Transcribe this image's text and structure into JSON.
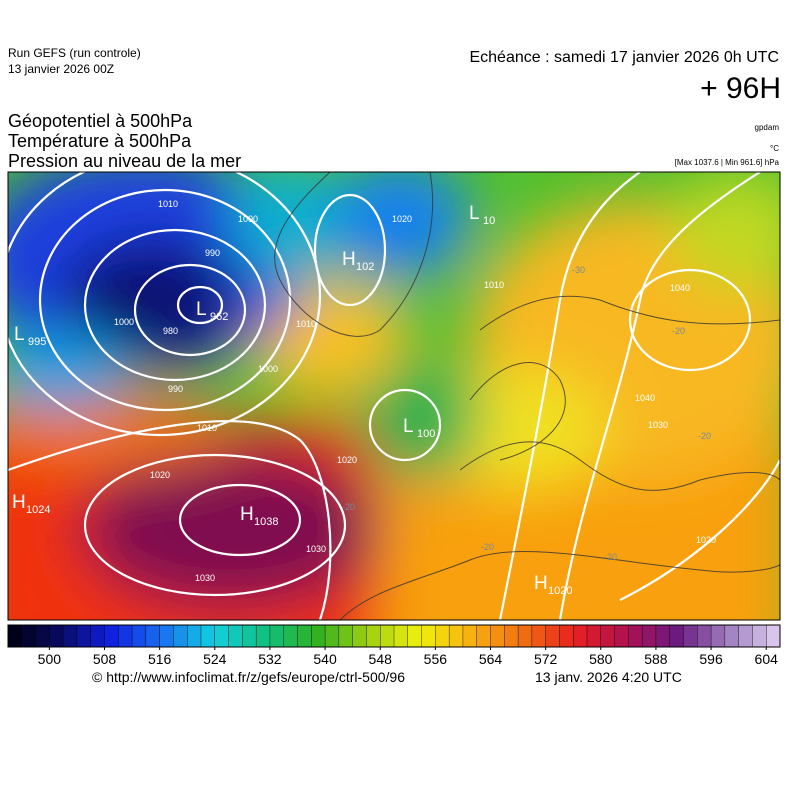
{
  "header": {
    "run": "Run GEFS (run controle)",
    "run_date": "13 janvier 2026 00Z",
    "valid": "Echéance : samedi 17 janvier 2026 0h UTC",
    "lead": "+ 96H",
    "fields": [
      "Géopotentiel à 500hPa",
      "Température à 500hPa",
      "Pression au niveau de la mer"
    ],
    "units": [
      "gpdam",
      "°C",
      "[Max 1037.6 | Min 961.6] hPa"
    ]
  },
  "map": {
    "pressure_centers": [
      {
        "type": "L",
        "value": "995"
      },
      {
        "type": "L",
        "value": "962"
      },
      {
        "type": "H",
        "value": "1024"
      },
      {
        "type": "H",
        "value": "1038"
      },
      {
        "type": "H",
        "value": "1020"
      },
      {
        "type": "L",
        "value": "100"
      },
      {
        "type": "H",
        "value": "102"
      },
      {
        "type": "L",
        "value": "10"
      }
    ],
    "isobar_labels": [
      1010,
      1000,
      990,
      980,
      1000,
      990,
      1010,
      1000,
      1010,
      1020,
      1030,
      1030,
      1020,
      1010,
      1040,
      1040,
      1030,
      1020,
      1020
    ],
    "temperature_labels": [
      -20,
      -20,
      -20,
      -30,
      -20,
      -20
    ]
  },
  "colorbar": {
    "range": [
      494,
      606
    ],
    "step": 2,
    "ticks": [
      500,
      508,
      516,
      524,
      532,
      540,
      548,
      556,
      564,
      572,
      580,
      588,
      596,
      604
    ],
    "stops": [
      "#000010",
      "#0a0a60",
      "#1020e0",
      "#1a70f0",
      "#10d0e0",
      "#10c080",
      "#30b020",
      "#a0d010",
      "#f0f010",
      "#f8b010",
      "#f07010",
      "#e82020",
      "#b01050",
      "#6a1a80",
      "#a080c0",
      "#e0d0f0"
    ]
  },
  "footer": {
    "source": "© http://www.infoclimat.fr/z/gefs/europe/ctrl-500/96",
    "generated": "13 janv. 2026  4:20 UTC"
  }
}
